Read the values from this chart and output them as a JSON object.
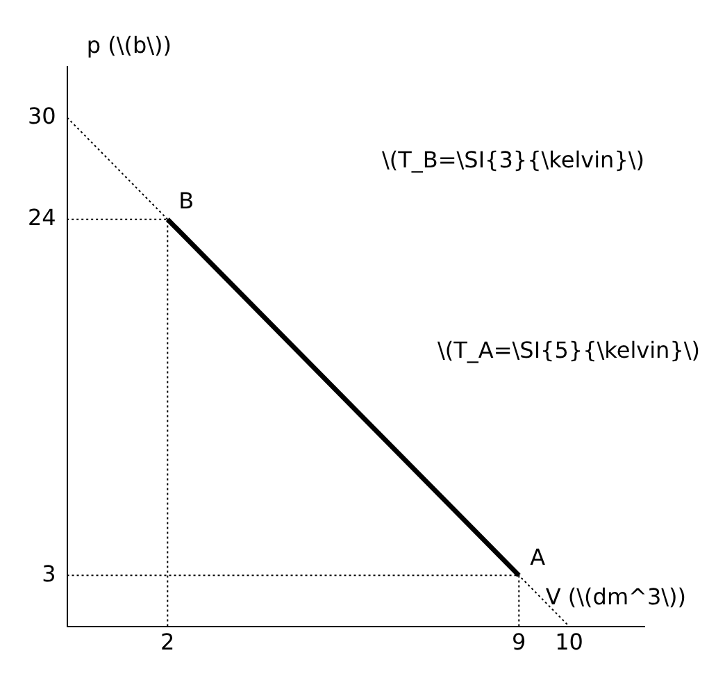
{
  "chart_data": {
    "type": "line",
    "xlabel": "V (\\(dm^3\\))",
    "ylabel": "p (\\(b\\))",
    "xlim": [
      0,
      11.5
    ],
    "ylim": [
      0,
      33
    ],
    "xticks": [
      2,
      9,
      10
    ],
    "yticks": [
      3,
      24,
      30
    ],
    "grid": false,
    "legend": false,
    "marker": "none",
    "series": [
      {
        "x": [
          0,
          10
        ],
        "values": [
          30,
          0
        ],
        "color": "#000000",
        "line_style": "dotted"
      },
      {
        "x": [
          2,
          2,
          0
        ],
        "values": [
          0,
          24,
          24
        ],
        "color": "#000000",
        "line_style": "dotted"
      },
      {
        "x": [
          9,
          9,
          0
        ],
        "values": [
          0,
          3,
          3
        ],
        "color": "#000000",
        "line_style": "dotted"
      },
      {
        "x": [
          2,
          9
        ],
        "values": [
          24,
          3
        ],
        "color": "#000000",
        "line_style": "solid"
      }
    ],
    "annotations": [
      {
        "text": "B",
        "x": 2,
        "y": 24
      },
      {
        "text": "A",
        "x": 9,
        "y": 3
      },
      "\\(T_B=\\SI{3}{\\kelvin}\\)",
      "\\(T_A=\\SI{5}{\\kelvin}\\)"
    ]
  }
}
